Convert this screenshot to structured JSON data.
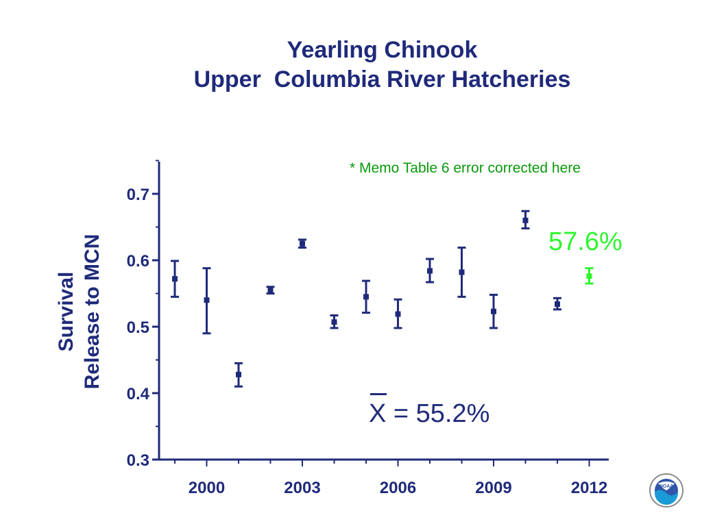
{
  "chart_data": {
    "type": "scatter",
    "title": [
      "Yearling Chinook",
      "Upper  Columbia River Hatcheries"
    ],
    "ylabel": [
      "Survival",
      "Release to MCN"
    ],
    "xlabel": "",
    "ylim": [
      0.3,
      0.75
    ],
    "xlim": [
      1998.5,
      2012.5
    ],
    "y_ticks": [
      "0.3",
      "0.4",
      "0.5",
      "0.6",
      "0.7"
    ],
    "x_ticks": [
      "2000",
      "2003",
      "2006",
      "2009",
      "2012"
    ],
    "grid": false,
    "series": [
      {
        "x": [
          1999,
          2000,
          2001,
          2002,
          2003,
          2004,
          2005,
          2006,
          2007,
          2008,
          2009,
          2010,
          2011
        ],
        "y": [
          0.572,
          0.54,
          0.428,
          0.555,
          0.625,
          0.507,
          0.545,
          0.519,
          0.584,
          0.582,
          0.523,
          0.66,
          0.534
        ],
        "y_low": [
          0.545,
          0.49,
          0.41,
          0.55,
          0.619,
          0.498,
          0.521,
          0.498,
          0.567,
          0.545,
          0.498,
          0.648,
          0.526
        ],
        "y_high": [
          0.599,
          0.588,
          0.445,
          0.56,
          0.631,
          0.517,
          0.569,
          0.541,
          0.602,
          0.619,
          0.548,
          0.674,
          0.543
        ],
        "color": "#1f2a7a"
      },
      {
        "x": [
          2012
        ],
        "y": [
          0.576
        ],
        "y_low": [
          0.565
        ],
        "y_high": [
          0.588
        ],
        "color": "#2ef52e"
      }
    ],
    "annotations": {
      "memo": "* Memo Table 6 error corrected here",
      "highlight": "57.6%",
      "mean_symbol": "X",
      "mean_value": " = 55.2%"
    }
  },
  "colors": {
    "primary": "#1f2a7a",
    "highlight": "#2ef52e",
    "memo": "#0a9a0a"
  },
  "logo": {
    "name": "noaa-logo",
    "text": "NOAA"
  }
}
